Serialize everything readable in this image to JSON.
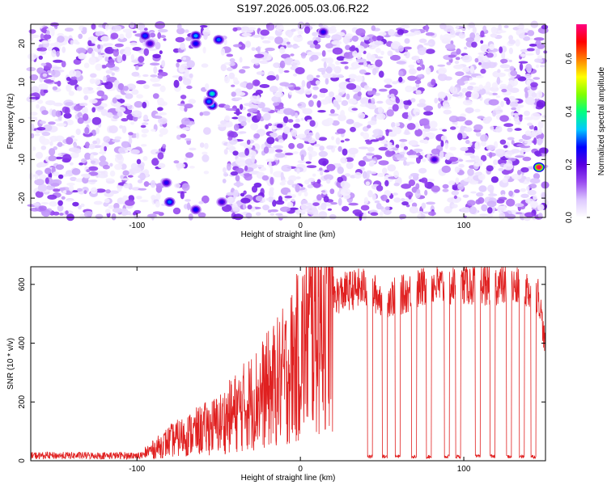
{
  "title": "S197.2026.005.03.06.R22",
  "chart_data": [
    {
      "type": "heatmap",
      "xlabel": "Height of straight line (km)",
      "ylabel": "Frequency (Hz)",
      "xlim": [
        -165,
        150
      ],
      "ylim": [
        -25,
        25
      ],
      "xticks": [
        -100,
        0,
        100
      ],
      "yticks": [
        -20,
        -10,
        0,
        10,
        20
      ],
      "colorbar": {
        "label": "Normalized spectral amplitude",
        "range": [
          0.0,
          0.73
        ],
        "ticks": [
          0.0,
          0.2,
          0.4,
          0.6
        ],
        "colormap": [
          "#ffffff",
          "#ddc8ff",
          "#9a4cf0",
          "#5a00e0",
          "#0000ff",
          "#00c8ff",
          "#00ff80",
          "#80ff00",
          "#ffff00",
          "#ff8000",
          "#ff0000",
          "#ff0080"
        ]
      },
      "gaps_x_km": [
        [
          -94,
          -91
        ],
        [
          -83,
          -76
        ],
        [
          -66,
          -61
        ],
        [
          -57,
          -48
        ],
        [
          83,
          85
        ]
      ],
      "hotspots": [
        {
          "x": -95,
          "y": 22,
          "v": 0.28
        },
        {
          "x": -92,
          "y": 20,
          "v": 0.22
        },
        {
          "x": -64,
          "y": 22,
          "v": 0.32
        },
        {
          "x": -64,
          "y": 20,
          "v": 0.26
        },
        {
          "x": -50,
          "y": 21,
          "v": 0.3
        },
        {
          "x": -54,
          "y": 7,
          "v": 0.36
        },
        {
          "x": -54,
          "y": 4,
          "v": 0.32
        },
        {
          "x": -56,
          "y": 5,
          "v": 0.3
        },
        {
          "x": -80,
          "y": -21,
          "v": 0.3
        },
        {
          "x": -82,
          "y": -16,
          "v": 0.24
        },
        {
          "x": -64,
          "y": -23,
          "v": 0.26
        },
        {
          "x": -48,
          "y": -21,
          "v": 0.22
        },
        {
          "x": 14,
          "y": 23,
          "v": 0.24
        },
        {
          "x": 82,
          "y": -10,
          "v": 0.22
        },
        {
          "x": 146,
          "y": -12,
          "v": 0.72
        }
      ]
    },
    {
      "type": "line",
      "xlabel": "Height of straight line (km)",
      "ylabel": "SNR (10 * v/v)",
      "xlim": [
        -165,
        150
      ],
      "ylim": [
        0,
        660
      ],
      "xticks": [
        -100,
        0,
        100
      ],
      "yticks": [
        0,
        200,
        400,
        600
      ],
      "series": [
        {
          "color": "#e02020",
          "x": [
            -165,
            -140,
            -110,
            -100,
            -90,
            -80,
            -70,
            -60,
            -50,
            -40,
            -30,
            -20,
            -10,
            0,
            5,
            10,
            20,
            30,
            40,
            50,
            60,
            70,
            80,
            90,
            100,
            110,
            120,
            130,
            140,
            146,
            150
          ],
          "y": [
            10,
            10,
            10,
            20,
            40,
            70,
            90,
            110,
            130,
            170,
            210,
            250,
            300,
            380,
            450,
            520,
            560,
            580,
            590,
            550,
            560,
            580,
            600,
            590,
            600,
            600,
            600,
            590,
            580,
            560,
            380
          ],
          "dropouts_x_km": [
            41,
            50,
            58,
            68,
            77,
            88,
            95,
            107,
            116,
            126,
            134,
            141
          ]
        }
      ]
    }
  ]
}
